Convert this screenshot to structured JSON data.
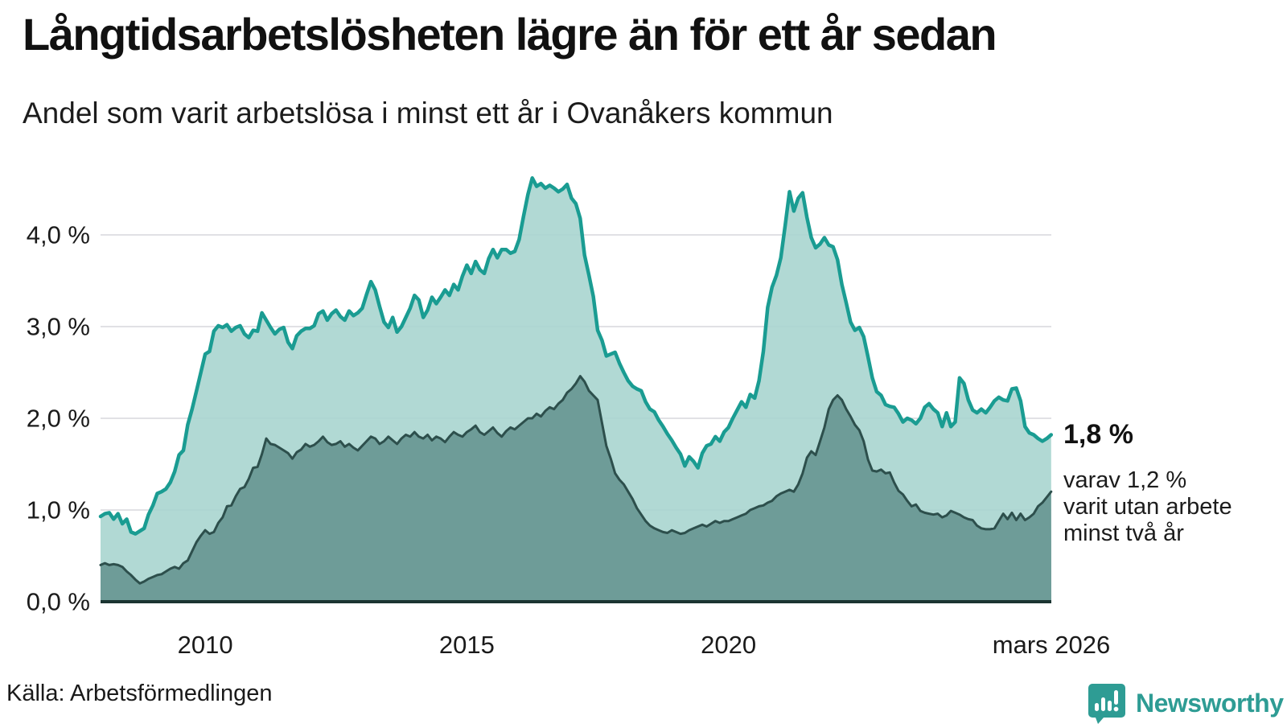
{
  "title": "Långtidsarbetslösheten lägre än för ett år sedan",
  "subtitle": "Andel som varit arbetslösa i minst ett år i Ovanåkers kommun",
  "source": "Källa: Arbetsförmedlingen",
  "branding": {
    "name": "Newsworthy",
    "icon": "newsworthy-speech-bubble-bars-icon",
    "color": "#2E9C94"
  },
  "annotation": {
    "headline": "1,8 %",
    "lines": [
      "varav 1,2 %",
      "varit utan arbete",
      "minst två år"
    ]
  },
  "colors": {
    "series1_line": "#1A9C92",
    "series1_fill": "#A8D5CF",
    "series2_line": "#2D4F4C",
    "series2_fill": "#6B9995",
    "gridline": "#E1E1E5",
    "baseline": "#1B3431",
    "text": "#1A1A1A",
    "background": "#FFFFFF"
  },
  "chart_data": {
    "type": "area",
    "title": "Långtidsarbetslösheten lägre än för ett år sedan",
    "subtitle": "Andel som varit arbetslösa i minst ett år i Ovanåkers kommun",
    "unit": "%",
    "x_axis": {
      "start_year": 2008.0,
      "end_label_year": 2026.17,
      "ticks": [
        {
          "year": 2010,
          "label": "2010"
        },
        {
          "year": 2015,
          "label": "2015"
        },
        {
          "year": 2020,
          "label": "2020"
        },
        {
          "year": 2026.17,
          "label": "mars 2026"
        }
      ]
    },
    "y_axis": {
      "range": [
        0,
        4.7
      ],
      "gridline_values": [
        1,
        2,
        3,
        4
      ],
      "ticks": [
        {
          "value": 4,
          "label": "4,0 %"
        },
        {
          "value": 3,
          "label": "3,0 %"
        },
        {
          "value": 2,
          "label": "2,0 %"
        },
        {
          "value": 1,
          "label": "1,0 %"
        },
        {
          "value": 0,
          "label": "0,0 %"
        }
      ],
      "grid": true
    },
    "legend_position": "none",
    "series": [
      {
        "name": "Andel arbetslösa minst ett år",
        "line_color": "#1A9C92",
        "fill_color": "#A8D5CF",
        "latest_value_label": "1,8 %",
        "start_year": 2008.0,
        "step_months": 1,
        "values": [
          0.93,
          0.96,
          0.97,
          0.9,
          0.96,
          0.85,
          0.9,
          0.76,
          0.74,
          0.77,
          0.8,
          0.95,
          1.05,
          1.18,
          1.2,
          1.23,
          1.3,
          1.42,
          1.6,
          1.65,
          1.93,
          2.1,
          2.3,
          2.5,
          2.7,
          2.73,
          2.95,
          3.01,
          2.99,
          3.02,
          2.95,
          2.99,
          3.01,
          2.92,
          2.88,
          2.96,
          2.95,
          3.15,
          3.07,
          2.99,
          2.92,
          2.97,
          2.99,
          2.83,
          2.76,
          2.9,
          2.95,
          2.98,
          2.98,
          3.01,
          3.14,
          3.17,
          3.07,
          3.14,
          3.18,
          3.11,
          3.07,
          3.17,
          3.12,
          3.15,
          3.2,
          3.35,
          3.49,
          3.4,
          3.22,
          3.05,
          2.99,
          3.1,
          2.94,
          3.0,
          3.1,
          3.2,
          3.34,
          3.29,
          3.1,
          3.18,
          3.32,
          3.25,
          3.32,
          3.4,
          3.34,
          3.46,
          3.4,
          3.55,
          3.67,
          3.58,
          3.71,
          3.62,
          3.58,
          3.74,
          3.84,
          3.75,
          3.84,
          3.84,
          3.8,
          3.82,
          3.95,
          4.2,
          4.44,
          4.62,
          4.53,
          4.56,
          4.51,
          4.54,
          4.51,
          4.47,
          4.5,
          4.55,
          4.4,
          4.34,
          4.18,
          3.78,
          3.56,
          3.33,
          2.96,
          2.85,
          2.68,
          2.7,
          2.72,
          2.6,
          2.5,
          2.41,
          2.35,
          2.32,
          2.3,
          2.18,
          2.1,
          2.07,
          1.98,
          1.91,
          1.83,
          1.76,
          1.68,
          1.61,
          1.48,
          1.58,
          1.53,
          1.46,
          1.62,
          1.7,
          1.72,
          1.8,
          1.75,
          1.85,
          1.9,
          2.0,
          2.09,
          2.18,
          2.12,
          2.26,
          2.22,
          2.41,
          2.73,
          3.21,
          3.43,
          3.56,
          3.75,
          4.1,
          4.47,
          4.26,
          4.4,
          4.46,
          4.19,
          3.97,
          3.86,
          3.9,
          3.97,
          3.89,
          3.87,
          3.73,
          3.46,
          3.26,
          3.05,
          2.96,
          2.99,
          2.89,
          2.67,
          2.44,
          2.29,
          2.25,
          2.15,
          2.13,
          2.12,
          2.05,
          1.96,
          2.0,
          1.98,
          1.94,
          2.0,
          2.12,
          2.16,
          2.1,
          2.06,
          1.91,
          2.06,
          1.91,
          1.96,
          2.44,
          2.38,
          2.2,
          2.09,
          2.06,
          2.1,
          2.06,
          2.12,
          2.19,
          2.23,
          2.2,
          2.19,
          2.32,
          2.33,
          2.19,
          1.91,
          1.84,
          1.82,
          1.78,
          1.75,
          1.78,
          1.82
        ]
      },
      {
        "name": "Andel arbetslösa minst två år",
        "line_color": "#2D4F4C",
        "fill_color": "#6B9995",
        "latest_value_label": "1,2 %",
        "start_year": 2008.0,
        "step_months": 1,
        "values": [
          0.4,
          0.42,
          0.4,
          0.41,
          0.4,
          0.38,
          0.33,
          0.29,
          0.24,
          0.2,
          0.22,
          0.25,
          0.27,
          0.29,
          0.3,
          0.33,
          0.36,
          0.38,
          0.36,
          0.42,
          0.45,
          0.55,
          0.65,
          0.72,
          0.78,
          0.74,
          0.76,
          0.86,
          0.92,
          1.04,
          1.05,
          1.15,
          1.23,
          1.25,
          1.34,
          1.46,
          1.47,
          1.61,
          1.78,
          1.72,
          1.71,
          1.68,
          1.65,
          1.62,
          1.56,
          1.63,
          1.66,
          1.72,
          1.69,
          1.71,
          1.75,
          1.8,
          1.74,
          1.71,
          1.72,
          1.75,
          1.69,
          1.72,
          1.68,
          1.65,
          1.7,
          1.75,
          1.8,
          1.78,
          1.72,
          1.75,
          1.8,
          1.76,
          1.72,
          1.78,
          1.82,
          1.8,
          1.85,
          1.8,
          1.78,
          1.82,
          1.76,
          1.8,
          1.78,
          1.74,
          1.8,
          1.85,
          1.82,
          1.8,
          1.85,
          1.88,
          1.92,
          1.85,
          1.82,
          1.86,
          1.9,
          1.84,
          1.8,
          1.86,
          1.9,
          1.88,
          1.92,
          1.96,
          2.0,
          2.0,
          2.05,
          2.02,
          2.08,
          2.12,
          2.1,
          2.16,
          2.2,
          2.28,
          2.32,
          2.38,
          2.46,
          2.4,
          2.3,
          2.25,
          2.2,
          1.95,
          1.7,
          1.56,
          1.4,
          1.33,
          1.28,
          1.2,
          1.12,
          1.02,
          0.95,
          0.88,
          0.83,
          0.8,
          0.78,
          0.76,
          0.75,
          0.78,
          0.76,
          0.74,
          0.75,
          0.78,
          0.8,
          0.82,
          0.84,
          0.82,
          0.85,
          0.88,
          0.86,
          0.88,
          0.88,
          0.9,
          0.92,
          0.94,
          0.96,
          1.0,
          1.02,
          1.04,
          1.05,
          1.08,
          1.1,
          1.15,
          1.18,
          1.2,
          1.22,
          1.2,
          1.28,
          1.4,
          1.57,
          1.64,
          1.6,
          1.75,
          1.9,
          2.1,
          2.2,
          2.25,
          2.2,
          2.1,
          2.02,
          1.93,
          1.87,
          1.75,
          1.55,
          1.43,
          1.42,
          1.44,
          1.4,
          1.41,
          1.3,
          1.21,
          1.17,
          1.1,
          1.04,
          1.06,
          0.99,
          0.97,
          0.96,
          0.95,
          0.96,
          0.92,
          0.94,
          0.99,
          0.97,
          0.95,
          0.92,
          0.9,
          0.89,
          0.83,
          0.8,
          0.79,
          0.79,
          0.8,
          0.88,
          0.96,
          0.9,
          0.97,
          0.89,
          0.96,
          0.89,
          0.92,
          0.96,
          1.04,
          1.08,
          1.14,
          1.2
        ]
      }
    ]
  }
}
